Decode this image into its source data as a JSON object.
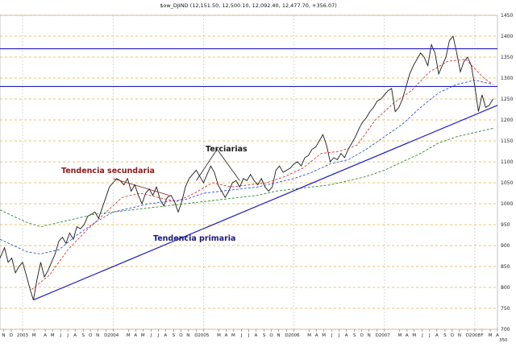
{
  "chart_data": {
    "type": "line",
    "title": "$ow_DJIND (12,151.50, 12,500.10, 12,092.40, 12,477.70, +356.07)",
    "ylim": [
      7000,
      14500
    ],
    "y_ticks": [
      7000,
      7500,
      8000,
      8500,
      9000,
      9500,
      10000,
      10500,
      11000,
      11500,
      12000,
      12500,
      13000,
      13500,
      14000,
      14500
    ],
    "y_tick_labels": [
      "700",
      "750",
      "800",
      "850",
      "900",
      "950",
      "1000",
      "1050",
      "1100",
      "1150",
      "1200",
      "1250",
      "1300",
      "1350",
      "1400",
      "1450"
    ],
    "x_range": [
      2002.75,
      2008.25
    ],
    "x_ticks": [
      {
        "x": 2002.79,
        "label": "N"
      },
      {
        "x": 2002.875,
        "label": "D"
      },
      {
        "x": 2003.0,
        "label": "2003"
      },
      {
        "x": 2003.125,
        "label": "M"
      },
      {
        "x": 2003.25,
        "label": "A"
      },
      {
        "x": 2003.33,
        "label": "M"
      },
      {
        "x": 2003.42,
        "label": "J"
      },
      {
        "x": 2003.5,
        "label": "J"
      },
      {
        "x": 2003.58,
        "label": "A"
      },
      {
        "x": 2003.67,
        "label": "S"
      },
      {
        "x": 2003.75,
        "label": "O"
      },
      {
        "x": 2003.83,
        "label": "N"
      },
      {
        "x": 2003.92,
        "label": "D"
      },
      {
        "x": 2004.0,
        "label": "2004"
      },
      {
        "x": 2004.17,
        "label": "M"
      },
      {
        "x": 2004.25,
        "label": "A"
      },
      {
        "x": 2004.33,
        "label": "M"
      },
      {
        "x": 2004.42,
        "label": "J"
      },
      {
        "x": 2004.5,
        "label": "J"
      },
      {
        "x": 2004.58,
        "label": "A"
      },
      {
        "x": 2004.67,
        "label": "S"
      },
      {
        "x": 2004.75,
        "label": "O"
      },
      {
        "x": 2004.83,
        "label": "N"
      },
      {
        "x": 2004.92,
        "label": "D"
      },
      {
        "x": 2005.0,
        "label": "2005"
      },
      {
        "x": 2005.17,
        "label": "M"
      },
      {
        "x": 2005.25,
        "label": "A"
      },
      {
        "x": 2005.33,
        "label": "M"
      },
      {
        "x": 2005.42,
        "label": "J"
      },
      {
        "x": 2005.5,
        "label": "J"
      },
      {
        "x": 2005.58,
        "label": "A"
      },
      {
        "x": 2005.67,
        "label": "S"
      },
      {
        "x": 2005.75,
        "label": "O"
      },
      {
        "x": 2005.83,
        "label": "N"
      },
      {
        "x": 2005.92,
        "label": "D"
      },
      {
        "x": 2006.0,
        "label": "2006"
      },
      {
        "x": 2006.17,
        "label": "M"
      },
      {
        "x": 2006.25,
        "label": "A"
      },
      {
        "x": 2006.33,
        "label": "M"
      },
      {
        "x": 2006.42,
        "label": "J"
      },
      {
        "x": 2006.5,
        "label": "J"
      },
      {
        "x": 2006.58,
        "label": "A"
      },
      {
        "x": 2006.67,
        "label": "S"
      },
      {
        "x": 2006.75,
        "label": "O"
      },
      {
        "x": 2006.83,
        "label": "N"
      },
      {
        "x": 2006.92,
        "label": "D"
      },
      {
        "x": 2007.0,
        "label": "2007"
      },
      {
        "x": 2007.17,
        "label": "M"
      },
      {
        "x": 2007.25,
        "label": "A"
      },
      {
        "x": 2007.33,
        "label": "M"
      },
      {
        "x": 2007.42,
        "label": "J"
      },
      {
        "x": 2007.5,
        "label": "J"
      },
      {
        "x": 2007.58,
        "label": "A"
      },
      {
        "x": 2007.67,
        "label": "S"
      },
      {
        "x": 2007.75,
        "label": "O"
      },
      {
        "x": 2007.83,
        "label": "N"
      },
      {
        "x": 2007.92,
        "label": "D"
      },
      {
        "x": 2008.0,
        "label": "2008"
      },
      {
        "x": 2008.08,
        "label": "F"
      },
      {
        "x": 2008.17,
        "label": "M"
      },
      {
        "x": 2008.25,
        "label": "A"
      }
    ],
    "grid": true,
    "series": [
      {
        "style": "price",
        "color": "#1a1a1a",
        "points": [
          [
            2002.75,
            8700
          ],
          [
            2002.8,
            8950
          ],
          [
            2002.84,
            8600
          ],
          [
            2002.88,
            8700
          ],
          [
            2002.92,
            8350
          ],
          [
            2002.96,
            8500
          ],
          [
            2003.0,
            8600
          ],
          [
            2003.04,
            8300
          ],
          [
            2003.09,
            7900
          ],
          [
            2003.12,
            7700
          ],
          [
            2003.16,
            8200
          ],
          [
            2003.2,
            8600
          ],
          [
            2003.24,
            8250
          ],
          [
            2003.28,
            8400
          ],
          [
            2003.32,
            8600
          ],
          [
            2003.36,
            8800
          ],
          [
            2003.4,
            9100
          ],
          [
            2003.44,
            9200
          ],
          [
            2003.48,
            9050
          ],
          [
            2003.52,
            9300
          ],
          [
            2003.56,
            9150
          ],
          [
            2003.6,
            9450
          ],
          [
            2003.64,
            9400
          ],
          [
            2003.68,
            9500
          ],
          [
            2003.72,
            9700
          ],
          [
            2003.76,
            9750
          ],
          [
            2003.8,
            9800
          ],
          [
            2003.84,
            9650
          ],
          [
            2003.88,
            9900
          ],
          [
            2003.92,
            10150
          ],
          [
            2003.96,
            10400
          ],
          [
            2004.0,
            10500
          ],
          [
            2004.04,
            10600
          ],
          [
            2004.08,
            10550
          ],
          [
            2004.12,
            10450
          ],
          [
            2004.16,
            10600
          ],
          [
            2004.2,
            10300
          ],
          [
            2004.24,
            10450
          ],
          [
            2004.28,
            10200
          ],
          [
            2004.32,
            10000
          ],
          [
            2004.36,
            10250
          ],
          [
            2004.4,
            10350
          ],
          [
            2004.44,
            10200
          ],
          [
            2004.48,
            10400
          ],
          [
            2004.52,
            10100
          ],
          [
            2004.56,
            9950
          ],
          [
            2004.6,
            10150
          ],
          [
            2004.64,
            10200
          ],
          [
            2004.68,
            10050
          ],
          [
            2004.72,
            9800
          ],
          [
            2004.76,
            10050
          ],
          [
            2004.8,
            10400
          ],
          [
            2004.84,
            10600
          ],
          [
            2004.88,
            10700
          ],
          [
            2004.92,
            10800
          ],
          [
            2004.96,
            10650
          ],
          [
            2005.0,
            10500
          ],
          [
            2005.04,
            10700
          ],
          [
            2005.08,
            10900
          ],
          [
            2005.12,
            10750
          ],
          [
            2005.16,
            10450
          ],
          [
            2005.2,
            10300
          ],
          [
            2005.24,
            10150
          ],
          [
            2005.28,
            10300
          ],
          [
            2005.32,
            10500
          ],
          [
            2005.36,
            10550
          ],
          [
            2005.4,
            10400
          ],
          [
            2005.44,
            10600
          ],
          [
            2005.48,
            10550
          ],
          [
            2005.52,
            10700
          ],
          [
            2005.56,
            10550
          ],
          [
            2005.6,
            10450
          ],
          [
            2005.64,
            10600
          ],
          [
            2005.68,
            10400
          ],
          [
            2005.72,
            10300
          ],
          [
            2005.76,
            10400
          ],
          [
            2005.8,
            10800
          ],
          [
            2005.84,
            10900
          ],
          [
            2005.88,
            10750
          ],
          [
            2005.92,
            10800
          ],
          [
            2005.96,
            10850
          ],
          [
            2006.0,
            10950
          ],
          [
            2006.04,
            11000
          ],
          [
            2006.08,
            10900
          ],
          [
            2006.12,
            11100
          ],
          [
            2006.16,
            11150
          ],
          [
            2006.2,
            11300
          ],
          [
            2006.24,
            11350
          ],
          [
            2006.28,
            11500
          ],
          [
            2006.32,
            11650
          ],
          [
            2006.36,
            11400
          ],
          [
            2006.4,
            11000
          ],
          [
            2006.44,
            11100
          ],
          [
            2006.48,
            11050
          ],
          [
            2006.52,
            11200
          ],
          [
            2006.56,
            11100
          ],
          [
            2006.6,
            11300
          ],
          [
            2006.64,
            11450
          ],
          [
            2006.68,
            11600
          ],
          [
            2006.72,
            11800
          ],
          [
            2006.76,
            11950
          ],
          [
            2006.8,
            12050
          ],
          [
            2006.84,
            12200
          ],
          [
            2006.88,
            12300
          ],
          [
            2006.92,
            12450
          ],
          [
            2006.96,
            12500
          ],
          [
            2007.0,
            12600
          ],
          [
            2007.04,
            12700
          ],
          [
            2007.08,
            12750
          ],
          [
            2007.12,
            12200
          ],
          [
            2007.16,
            12300
          ],
          [
            2007.2,
            12500
          ],
          [
            2007.24,
            12800
          ],
          [
            2007.28,
            13100
          ],
          [
            2007.32,
            13300
          ],
          [
            2007.36,
            13450
          ],
          [
            2007.4,
            13600
          ],
          [
            2007.44,
            13500
          ],
          [
            2007.48,
            13300
          ],
          [
            2007.52,
            13800
          ],
          [
            2007.56,
            13600
          ],
          [
            2007.6,
            13100
          ],
          [
            2007.64,
            13300
          ],
          [
            2007.68,
            13500
          ],
          [
            2007.72,
            13900
          ],
          [
            2007.76,
            14000
          ],
          [
            2007.8,
            13600
          ],
          [
            2007.84,
            13150
          ],
          [
            2007.88,
            13400
          ],
          [
            2007.92,
            13500
          ],
          [
            2007.96,
            13300
          ],
          [
            2008.0,
            12800
          ],
          [
            2008.04,
            12200
          ],
          [
            2008.08,
            12600
          ],
          [
            2008.12,
            12300
          ],
          [
            2008.16,
            12350
          ],
          [
            2008.2,
            12500
          ]
        ]
      },
      {
        "style": "ma-red-dashed",
        "color": "#d62020",
        "points": [
          [
            2003.1,
            7950
          ],
          [
            2003.3,
            8300
          ],
          [
            2003.5,
            8900
          ],
          [
            2003.7,
            9350
          ],
          [
            2003.9,
            9750
          ],
          [
            2004.1,
            10150
          ],
          [
            2004.3,
            10250
          ],
          [
            2004.5,
            10150
          ],
          [
            2004.7,
            10050
          ],
          [
            2004.9,
            10250
          ],
          [
            2005.1,
            10500
          ],
          [
            2005.3,
            10400
          ],
          [
            2005.5,
            10450
          ],
          [
            2005.7,
            10500
          ],
          [
            2005.9,
            10650
          ],
          [
            2006.1,
            10850
          ],
          [
            2006.3,
            11200
          ],
          [
            2006.5,
            11250
          ],
          [
            2006.7,
            11400
          ],
          [
            2006.9,
            12000
          ],
          [
            2007.1,
            12400
          ],
          [
            2007.3,
            12700
          ],
          [
            2007.5,
            13150
          ],
          [
            2007.7,
            13400
          ],
          [
            2007.9,
            13450
          ],
          [
            2008.1,
            13000
          ],
          [
            2008.2,
            12850
          ]
        ]
      },
      {
        "style": "ma-blue-dashed",
        "color": "#1f3fd1",
        "points": [
          [
            2002.75,
            9150
          ],
          [
            2002.9,
            9000
          ],
          [
            2003.05,
            8850
          ],
          [
            2003.2,
            8800
          ],
          [
            2003.4,
            8900
          ],
          [
            2003.6,
            9250
          ],
          [
            2003.8,
            9550
          ],
          [
            2004.0,
            9800
          ],
          [
            2004.2,
            9900
          ],
          [
            2004.4,
            10000
          ],
          [
            2004.6,
            10050
          ],
          [
            2004.8,
            10100
          ],
          [
            2005.0,
            10250
          ],
          [
            2005.2,
            10300
          ],
          [
            2005.4,
            10350
          ],
          [
            2005.6,
            10400
          ],
          [
            2005.8,
            10500
          ],
          [
            2006.0,
            10600
          ],
          [
            2006.2,
            10750
          ],
          [
            2006.4,
            10950
          ],
          [
            2006.6,
            11050
          ],
          [
            2006.8,
            11300
          ],
          [
            2007.0,
            11600
          ],
          [
            2007.2,
            11900
          ],
          [
            2007.4,
            12300
          ],
          [
            2007.6,
            12650
          ],
          [
            2007.8,
            12850
          ],
          [
            2008.0,
            12950
          ],
          [
            2008.2,
            12850
          ]
        ]
      },
      {
        "style": "ma-green-dashed",
        "color": "#1a7a1a",
        "points": [
          [
            2002.75,
            9850
          ],
          [
            2002.9,
            9700
          ],
          [
            2003.05,
            9550
          ],
          [
            2003.2,
            9450
          ],
          [
            2003.4,
            9550
          ],
          [
            2003.6,
            9650
          ],
          [
            2003.8,
            9750
          ],
          [
            2004.0,
            9800
          ],
          [
            2004.2,
            9850
          ],
          [
            2004.4,
            9900
          ],
          [
            2004.6,
            9950
          ],
          [
            2004.8,
            10000
          ],
          [
            2005.0,
            10050
          ],
          [
            2005.2,
            10100
          ],
          [
            2005.4,
            10150
          ],
          [
            2005.6,
            10200
          ],
          [
            2005.8,
            10300
          ],
          [
            2006.0,
            10350
          ],
          [
            2006.2,
            10400
          ],
          [
            2006.4,
            10450
          ],
          [
            2006.6,
            10550
          ],
          [
            2006.8,
            10650
          ],
          [
            2007.0,
            10800
          ],
          [
            2007.2,
            11000
          ],
          [
            2007.4,
            11200
          ],
          [
            2007.6,
            11450
          ],
          [
            2007.8,
            11600
          ],
          [
            2008.0,
            11700
          ],
          [
            2008.2,
            11800
          ]
        ]
      }
    ],
    "hlines": [
      13700,
      12800
    ],
    "trendlines": [
      {
        "color": "#1f1fbf",
        "from": [
          2003.12,
          7700
        ],
        "to": [
          2008.25,
          12350
        ]
      },
      {
        "color": "#8b1a1a",
        "from": [
          2004.0,
          10600
        ],
        "to": [
          2004.62,
          10200
        ]
      },
      {
        "color": "#1a1a1a",
        "from": [
          2005.15,
          11300
        ],
        "to": [
          2004.92,
          10550
        ]
      },
      {
        "color": "#1a1a1a",
        "from": [
          2005.15,
          11300
        ],
        "to": [
          2005.4,
          10550
        ]
      }
    ],
    "annotations": {
      "secundaria": "Tendencia secundaria",
      "terciarias": "Terciarias",
      "primaria": "Tendencia primaria"
    },
    "corner_label": "350"
  }
}
